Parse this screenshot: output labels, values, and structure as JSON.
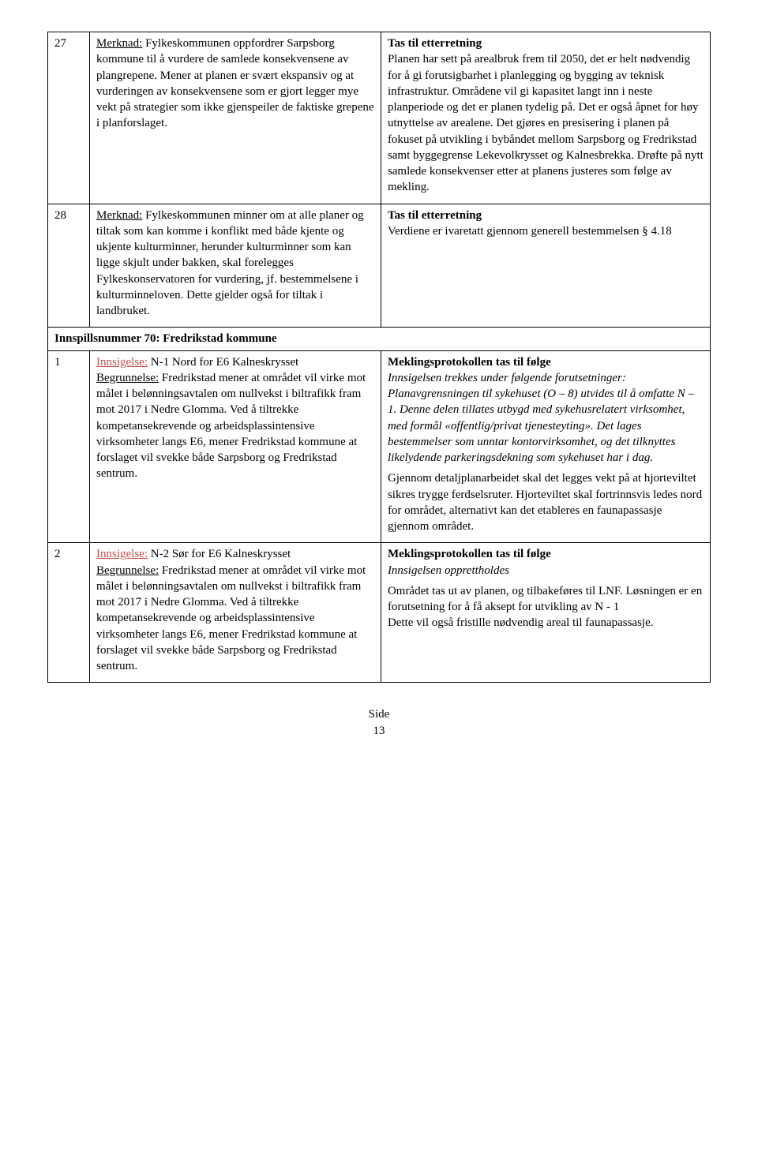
{
  "rows": [
    {
      "num": "27",
      "left": {
        "p1": {
          "lead": "Merknad:",
          "text": " Fylkeskommunen oppfordrer Sarpsborg kommune til å vurdere de samlede konsekvensene av plangrepene. Mener at planen er svært ekspansiv og at vurderingen av konsekvensene som er gjort legger mye vekt på strategier som ikke gjenspeiler de faktiske grepene i planforslaget."
        }
      },
      "right": {
        "head": "Tas til etterretning",
        "body": "Planen har sett på arealbruk frem til 2050, det er helt nødvendig for å gi forutsigbarhet i planlegging og bygging av teknisk infrastruktur. Områdene vil gi kapasitet langt inn i neste planperiode og det er planen tydelig på. Det er også åpnet for høy utnyttelse av arealene. Det gjøres en presisering i planen på fokuset på utvikling i bybåndet mellom Sarpsborg og Fredrikstad samt byggegrense Lekevolkrysset og Kalnesbrekka. Drøfte på nytt samlede konsekvenser etter at planens justeres som følge av mekling."
      }
    },
    {
      "num": "28",
      "left": {
        "p1": {
          "lead": "Merknad:",
          "text": " Fylkeskommunen minner om at alle planer og tiltak som kan komme i konflikt med både kjente og ukjente kulturminner, herunder kulturminner som kan ligge skjult under bakken, skal forelegges Fylkeskonservatoren for vurdering, jf. bestemmelsene i kulturminneloven. Dette gjelder også for tiltak i landbruket."
        }
      },
      "right": {
        "head": "Tas til etterretning",
        "body": "Verdiene er ivaretatt gjennom generell bestemmelsen § 4.18"
      }
    }
  ],
  "spanner": "Innspillsnummer 70: Fredrikstad kommune",
  "rows2": [
    {
      "num": "1",
      "left": {
        "innsigelse_label": "Innsigelse:",
        "innsigelse_text": " N-1 Nord for E6 Kalneskrysset",
        "begrunnelse_label": "Begrunnelse:",
        "begrunnelse_text": " Fredrikstad mener at området vil virke mot målet i belønningsavtalen om nullvekst i biltrafikk fram mot 2017 i Nedre Glomma. Ved å tiltrekke kompetansekrevende og arbeidsplassintensive virksomheter langs E6, mener Fredrikstad kommune at forslaget vil svekke både Sarpsborg og Fredrikstad sentrum."
      },
      "right": {
        "line1": "Meklingsprotokollen tas til følge",
        "italic": "Innsigelsen trekkes under følgende forutsetninger: Planavgrensningen til sykehuset (O – 8) utvides til å omfatte N – 1. Denne delen tillates utbygd med sykehusrelatert virksomhet, med formål «offentlig/privat tjenesteyting». Det lages bestemmelser som unntar kontorvirksomhet, og det tilknyttes likelydende parkeringsdekning som sykehuset har i dag.",
        "para2": "Gjennom detaljplanarbeidet skal det legges vekt på at hjorteviltet sikres trygge ferdselsruter. Hjorteviltet skal fortrinnsvis ledes nord for området, alternativt kan det etableres en faunapassasje gjennom området."
      }
    },
    {
      "num": "2",
      "left": {
        "innsigelse_label": "Innsigelse:",
        "innsigelse_text": " N-2 Sør for E6 Kalneskrysset",
        "begrunnelse_label": "Begrunnelse:",
        "begrunnelse_text": " Fredrikstad mener at området vil virke mot målet i belønningsavtalen om nullvekst i biltrafikk fram mot 2017 i Nedre Glomma. Ved å tiltrekke kompetansekrevende og arbeidsplassintensive virksomheter langs E6, mener Fredrikstad kommune at forslaget vil svekke både Sarpsborg og Fredrikstad sentrum."
      },
      "right": {
        "line1": "Meklingsprotokollen tas til følge",
        "italic": "Innsigelsen opprettholdes",
        "para2": "Området tas ut av planen, og tilbakeføres til LNF. Løsningen er en forutsetning for å få aksept for utvikling av N - 1",
        "para3": "Dette vil også fristille nødvendig areal til faunapassasje."
      }
    }
  ],
  "footer": {
    "side": "Side",
    "page": "13"
  }
}
